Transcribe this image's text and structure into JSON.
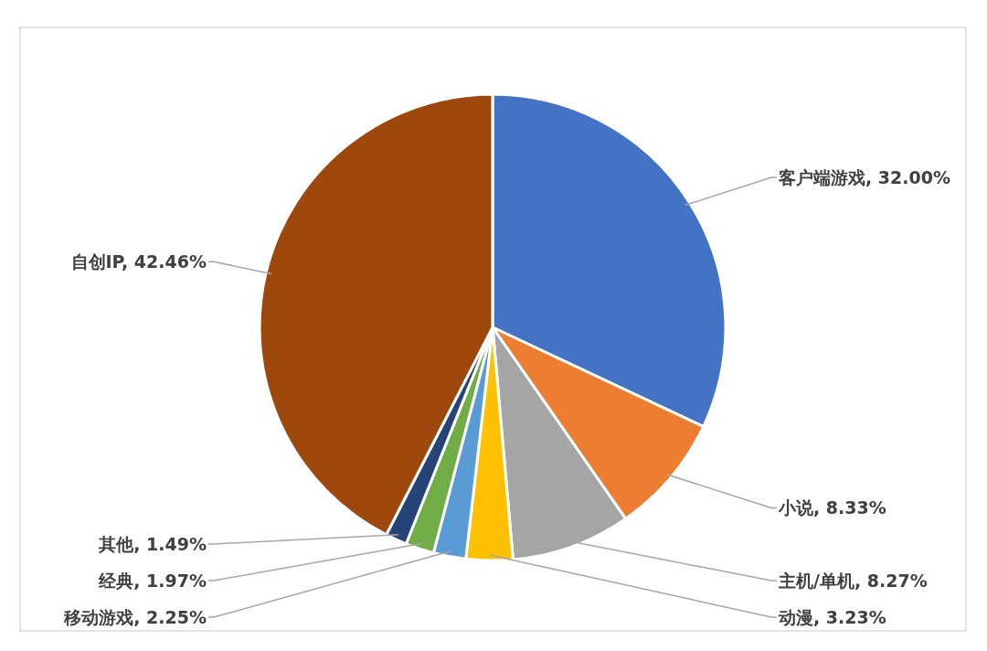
{
  "chart_data": {
    "type": "pie",
    "categories": [
      "客户端游戏",
      "小说",
      "主机/单机",
      "动漫",
      "移动游戏",
      "经典",
      "其他",
      "自创IP"
    ],
    "values": [
      32.0,
      8.33,
      8.27,
      3.23,
      2.25,
      1.97,
      1.49,
      42.46
    ],
    "value_labels": [
      "32.00%",
      "8.33%",
      "8.27%",
      "3.23%",
      "2.25%",
      "1.97%",
      "1.49%",
      "42.46%"
    ],
    "colors": [
      "#4472c4",
      "#ed7d31",
      "#a5a5a5",
      "#ffc000",
      "#5b9bd5",
      "#70ad47",
      "#264478",
      "#9e480e"
    ],
    "legend": false
  }
}
